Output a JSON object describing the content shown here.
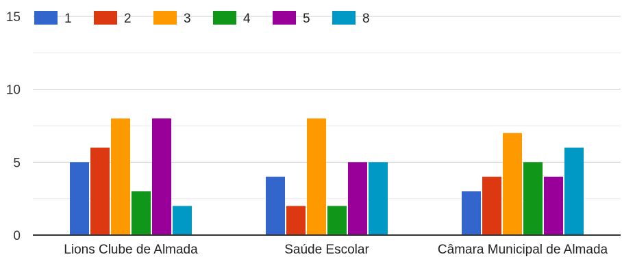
{
  "chart_data": {
    "type": "bar",
    "categories": [
      "Lions Clube de Almada",
      "Saúde Escolar",
      "Câmara Municipal de Almada"
    ],
    "series": [
      {
        "name": "1",
        "color": "#3366cc",
        "values": [
          5,
          4,
          3
        ]
      },
      {
        "name": "2",
        "color": "#dc3912",
        "values": [
          6,
          2,
          4
        ]
      },
      {
        "name": "3",
        "color": "#ff9900",
        "values": [
          8,
          8,
          7
        ]
      },
      {
        "name": "4",
        "color": "#109618",
        "values": [
          3,
          2,
          5
        ]
      },
      {
        "name": "5",
        "color": "#990099",
        "values": [
          8,
          5,
          4
        ]
      },
      {
        "name": "8",
        "color": "#0099c6",
        "values": [
          2,
          5,
          6
        ]
      }
    ],
    "ylim": [
      0,
      15
    ],
    "yticks": [
      0,
      5,
      10,
      15
    ],
    "grid": true,
    "legend_position": "top-left"
  }
}
